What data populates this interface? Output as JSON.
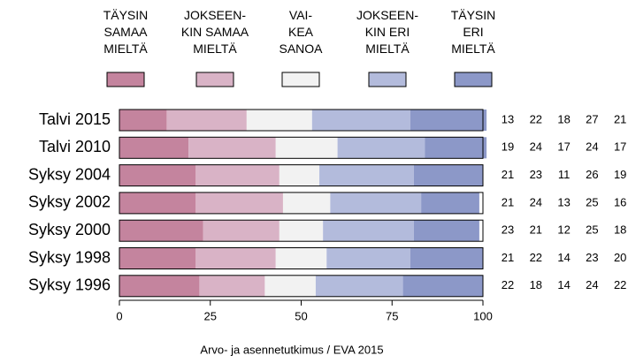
{
  "chart_data": {
    "type": "stacked-barh",
    "categories": [
      "Talvi 2015",
      "Talvi 2010",
      "Syksy 2004",
      "Syksy 2002",
      "Syksy 2000",
      "Syksy 1998",
      "Syksy 1996"
    ],
    "series": [
      {
        "name": "TÄYSIN\nSAMAA\nMIELTÄ",
        "color": "#c4849e",
        "values": [
          13,
          19,
          21,
          21,
          23,
          21,
          22
        ]
      },
      {
        "name": "JOKSEEN-\nKIN SAMAA\nMIELTÄ",
        "color": "#d9b3c6",
        "values": [
          22,
          24,
          23,
          24,
          21,
          22,
          18
        ]
      },
      {
        "name": "VAI-\nKEA\nSANOA",
        "color": "#f2f2f2",
        "values": [
          18,
          17,
          11,
          13,
          12,
          14,
          14
        ]
      },
      {
        "name": "JOKSEEN-\nKIN ERI\nMIELTÄ",
        "color": "#b3bbdc",
        "values": [
          27,
          24,
          26,
          25,
          25,
          23,
          24
        ]
      },
      {
        "name": "TÄYSIN\nERI\nMIELTÄ",
        "color": "#8c98c8",
        "values": [
          21,
          17,
          19,
          16,
          18,
          20,
          22
        ]
      }
    ],
    "xlim": [
      0,
      100
    ],
    "xticks": [
      0,
      25,
      50,
      75,
      100
    ],
    "source": "Arvo- ja asennetutkimus / EVA 2015"
  }
}
